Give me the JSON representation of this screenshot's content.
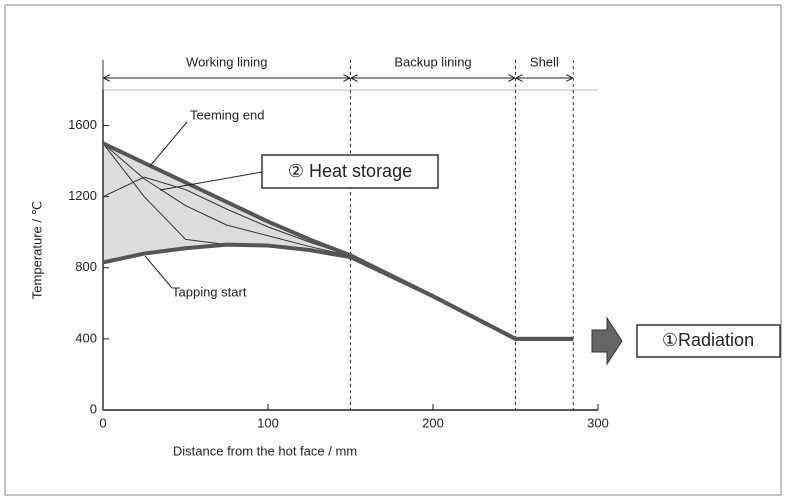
{
  "chart_data": {
    "type": "line",
    "xlabel": "Distance from the hot face / mm",
    "ylabel": "Temperature / ℃",
    "x": [
      0,
      25,
      50,
      75,
      100,
      125,
      150,
      200,
      250,
      285
    ],
    "series": [
      {
        "name": "Teeming end",
        "color": "#555555",
        "values": [
          1500,
          1390,
          1280,
          1170,
          1060,
          960,
          870,
          640,
          400,
          400
        ]
      },
      {
        "name": "Tapping start",
        "color": "#555555",
        "values": [
          830,
          880,
          910,
          930,
          925,
          900,
          860,
          640,
          400,
          400
        ]
      },
      {
        "color": "#333333",
        "values": [
          1500,
          1200,
          960,
          930,
          925,
          900,
          862,
          640,
          400,
          400
        ]
      },
      {
        "color": "#333333",
        "values": [
          1500,
          1300,
          1150,
          1040,
          980,
          920,
          866,
          640,
          400,
          400
        ]
      },
      {
        "color": "#333333",
        "values": [
          1200,
          1310,
          1240,
          1130,
          1030,
          945,
          868,
          640,
          400,
          400
        ]
      }
    ],
    "xlim": [
      0,
      300
    ],
    "ylim": [
      0,
      1800
    ],
    "xticks": [
      0,
      100,
      200,
      300
    ],
    "yticks": [
      0,
      400,
      800,
      1200,
      1600
    ],
    "regions": [
      {
        "label": "Working lining",
        "from": 0,
        "to": 150
      },
      {
        "label": "Backup lining",
        "from": 150,
        "to": 250
      },
      {
        "label": "Shell",
        "from": 250,
        "to": 285
      }
    ],
    "annotations": {
      "heat_storage": "② Heat storage",
      "radiation": "①Radiation"
    }
  }
}
